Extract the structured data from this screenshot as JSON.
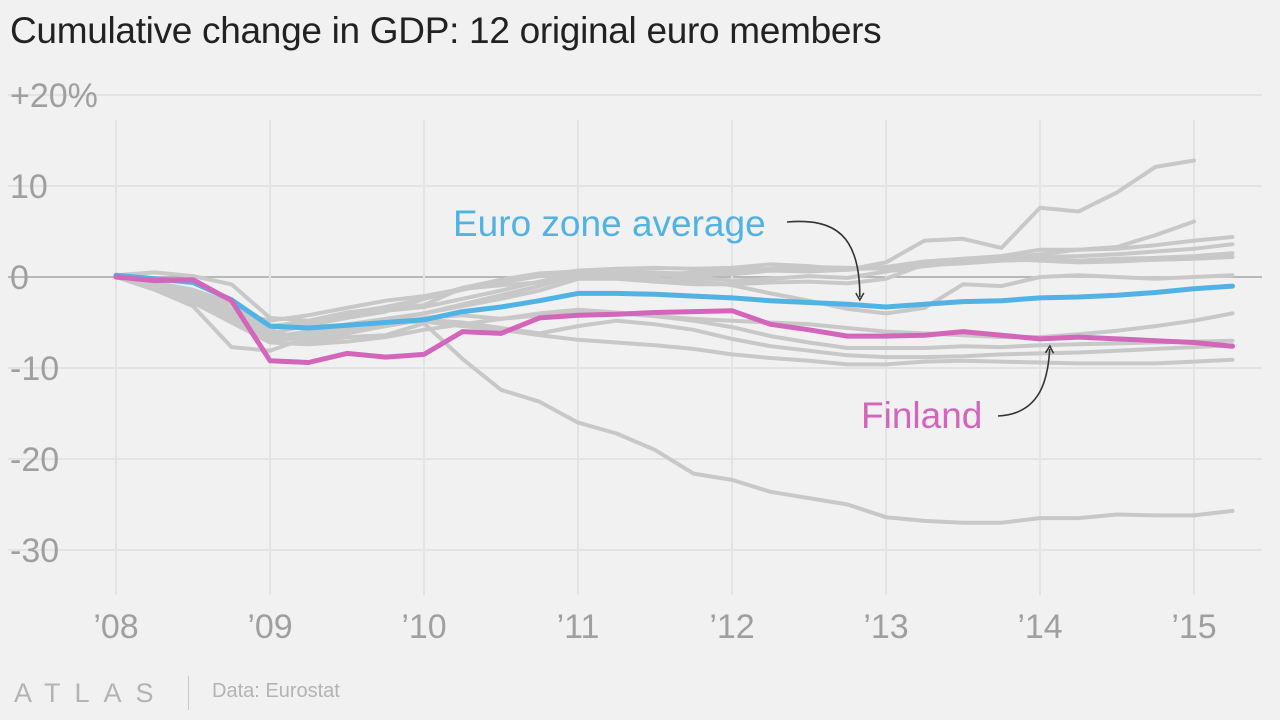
{
  "title": "Cumulative change in GDP: 12 original euro members",
  "footer": {
    "logo_text": "ATLAS",
    "source": "Data: Eurostat"
  },
  "colors": {
    "background": "#f1f1f1",
    "grid": "#e3e3e3",
    "zero_line": "#a6a6a6",
    "other_countries": "#c8c8c8",
    "euro_average": "#51b2e5",
    "finland": "#d365ba",
    "tick_text": "#9f9f9f"
  },
  "chart_data": {
    "type": "line",
    "title": "Cumulative change in GDP: 12 original euro members",
    "xlabel": "",
    "ylabel": "",
    "x_ticks": [
      "’08",
      "’09",
      "’10",
      "’11",
      "’12",
      "’13",
      "’14",
      "’15"
    ],
    "y_ticks": [
      {
        "value": 20,
        "label": "+20%"
      },
      {
        "value": 10,
        "label": "10"
      },
      {
        "value": 0,
        "label": "0"
      },
      {
        "value": -10,
        "label": "-10"
      },
      {
        "value": -20,
        "label": "-20"
      },
      {
        "value": -30,
        "label": "-30"
      }
    ],
    "xlim": [
      2008.0,
      2015.4
    ],
    "ylim": [
      -32,
      22
    ],
    "grid": true,
    "x": [
      2008.0,
      2008.25,
      2008.5,
      2008.75,
      2009.0,
      2009.25,
      2009.5,
      2009.75,
      2010.0,
      2010.25,
      2010.5,
      2010.75,
      2011.0,
      2011.25,
      2011.5,
      2011.75,
      2012.0,
      2012.25,
      2012.5,
      2012.75,
      2013.0,
      2013.25,
      2013.5,
      2013.75,
      2014.0,
      2014.25,
      2014.5,
      2014.75,
      2015.0,
      2015.25
    ],
    "highlighted": [
      {
        "name": "Euro zone average",
        "color": "#51b2e5",
        "values": [
          0.2,
          -0.2,
          -0.6,
          -2.5,
          -5.4,
          -5.6,
          -5.3,
          -5.0,
          -4.7,
          -3.8,
          -3.3,
          -2.6,
          -1.8,
          -1.8,
          -1.9,
          -2.1,
          -2.3,
          -2.6,
          -2.8,
          -3.0,
          -3.3,
          -3.0,
          -2.7,
          -2.6,
          -2.3,
          -2.2,
          -2.0,
          -1.7,
          -1.3,
          -1.0
        ]
      },
      {
        "name": "Finland",
        "color": "#d365ba",
        "values": [
          0.0,
          -0.4,
          -0.3,
          -2.6,
          -9.2,
          -9.4,
          -8.4,
          -8.8,
          -8.5,
          -6.0,
          -6.2,
          -4.5,
          -4.2,
          -4.1,
          -3.9,
          -3.8,
          -3.7,
          -5.2,
          -5.8,
          -6.5,
          -6.5,
          -6.4,
          -6.0,
          -6.4,
          -6.8,
          -6.6,
          -6.8,
          -7.0,
          -7.2,
          -7.6
        ]
      }
    ],
    "other_series": [
      {
        "values": [
          0.2,
          0.5,
          0.1,
          -0.8,
          -4.5,
          -4.8,
          -3.9,
          -3.4,
          -3.1,
          -1.2,
          -0.4,
          0.2,
          0.7,
          0.9,
          1.0,
          0.9,
          1.0,
          1.4,
          1.2,
          0.8,
          1.6,
          4.0,
          4.2,
          3.2,
          7.6,
          7.2,
          9.3,
          12.1,
          12.8,
          null
        ]
      },
      {
        "values": [
          0.1,
          -0.6,
          -1.4,
          -2.9,
          -5.6,
          -5.0,
          -4.0,
          -3.3,
          -2.4,
          -1.4,
          -0.6,
          0.1,
          0.4,
          0.4,
          0.3,
          0.0,
          -0.4,
          -0.2,
          0.1,
          -0.1,
          0.6,
          1.2,
          1.6,
          2.0,
          2.5,
          3.0,
          3.3,
          4.6,
          6.1,
          null
        ]
      },
      {
        "values": [
          0.0,
          -0.7,
          -1.7,
          -3.5,
          -6.2,
          -5.3,
          -4.5,
          -3.8,
          -2.4,
          -1.2,
          -0.3,
          0.4,
          0.6,
          0.6,
          0.5,
          0.3,
          0.3,
          0.7,
          0.6,
          0.8,
          1.1,
          1.7,
          2.0,
          2.3,
          3.0,
          3.0,
          3.1,
          3.5,
          4.0,
          4.4
        ]
      },
      {
        "values": [
          0.0,
          -0.6,
          -1.5,
          -3.0,
          -5.4,
          -4.9,
          -4.3,
          -3.7,
          -3.3,
          -2.4,
          -1.5,
          -0.5,
          0.4,
          0.5,
          0.4,
          0.4,
          0.7,
          0.9,
          0.8,
          1.0,
          1.0,
          1.4,
          1.6,
          1.9,
          2.2,
          2.3,
          2.5,
          2.8,
          3.1,
          3.6
        ]
      },
      {
        "values": [
          0.1,
          -0.8,
          -2.0,
          -4.0,
          -6.6,
          -6.0,
          -5.4,
          -4.9,
          -4.0,
          -3.0,
          -2.0,
          -1.0,
          0.2,
          0.1,
          0.2,
          0.5,
          0.6,
          0.9,
          1.1,
          1.0,
          0.9,
          1.3,
          1.5,
          1.8,
          1.9,
          1.8,
          2.0,
          2.1,
          2.3,
          2.6
        ]
      },
      {
        "values": [
          0.0,
          -0.9,
          -2.2,
          -4.6,
          -6.5,
          -6.2,
          -5.2,
          -4.6,
          -4.0,
          -3.2,
          -2.4,
          -1.5,
          -0.2,
          -0.2,
          -0.5,
          -0.8,
          -0.8,
          -0.6,
          -0.5,
          -0.7,
          -0.2,
          1.4,
          1.6,
          2.0,
          1.8,
          1.6,
          1.7,
          1.9,
          2.0,
          2.2
        ]
      },
      {
        "values": [
          0.0,
          -1.0,
          -2.4,
          -3.8,
          -4.8,
          -4.2,
          -3.4,
          -2.6,
          -2.1,
          -1.3,
          -0.9,
          -0.6,
          0.0,
          0.0,
          -0.2,
          -0.4,
          -0.9,
          -1.8,
          -2.6,
          -3.5,
          -4.0,
          -3.4,
          -0.8,
          -1.0,
          0.0,
          0.2,
          0.0,
          -0.2,
          0.0,
          0.2
        ]
      },
      {
        "values": [
          0.0,
          -1.2,
          -2.6,
          -4.8,
          -7.0,
          -6.6,
          -6.0,
          -5.4,
          -4.5,
          -4.2,
          -4.6,
          -4.2,
          -3.8,
          -4.0,
          -4.3,
          -4.6,
          -4.8,
          -5.0,
          -5.2,
          -5.6,
          -6.0,
          -6.2,
          -6.4,
          -6.6,
          -6.6,
          -6.3,
          -5.9,
          -5.4,
          -4.8,
          -4.0
        ]
      },
      {
        "values": [
          0.0,
          -1.3,
          -2.8,
          -5.0,
          -7.2,
          -7.4,
          -7.1,
          -6.6,
          -5.8,
          -5.2,
          -4.6,
          -4.0,
          -3.6,
          -3.9,
          -4.3,
          -4.8,
          -5.5,
          -6.5,
          -7.2,
          -7.8,
          -7.8,
          -7.8,
          -7.6,
          -7.7,
          -7.5,
          -7.4,
          -7.3,
          -7.2,
          -7.1,
          -7.0
        ]
      },
      {
        "values": [
          0.0,
          -1.0,
          -2.2,
          -4.2,
          -6.4,
          -6.8,
          -6.2,
          -5.4,
          -4.7,
          -5.0,
          -5.6,
          -6.2,
          -5.4,
          -4.8,
          -5.2,
          -5.8,
          -6.8,
          -7.6,
          -8.1,
          -8.6,
          -8.8,
          -8.8,
          -8.7,
          -8.5,
          -8.4,
          -8.3,
          -8.1,
          -7.9,
          -7.7,
          -7.5
        ]
      },
      {
        "values": [
          0.0,
          -1.4,
          -3.2,
          -7.7,
          -8.1,
          -6.6,
          -5.6,
          -5.0,
          -4.9,
          -5.4,
          -5.8,
          -6.4,
          -6.9,
          -7.2,
          -7.5,
          -7.9,
          -8.5,
          -8.9,
          -9.2,
          -9.6,
          -9.6,
          -9.3,
          -9.2,
          -9.3,
          -9.4,
          -9.5,
          -9.5,
          -9.5,
          -9.3,
          -9.1
        ]
      },
      {
        "values": [
          0.0,
          -0.6,
          -1.8,
          -3.8,
          -5.8,
          -7.1,
          -6.6,
          -6.4,
          -5.1,
          -9.0,
          -12.4,
          -13.7,
          -16.0,
          -17.2,
          -19.0,
          -21.6,
          -22.3,
          -23.6,
          -24.3,
          -25.0,
          -26.4,
          -26.8,
          -27.0,
          -27.0,
          -26.5,
          -26.5,
          -26.1,
          -26.2,
          -26.2,
          -25.7
        ]
      }
    ],
    "annotations": [
      {
        "text": "Euro zone average",
        "color": "#51b2e5",
        "points_to": "Euro zone average",
        "at_x": 2012.83
      },
      {
        "text": "Finland",
        "color": "#d365ba",
        "points_to": "Finland",
        "at_x": 2014.05
      }
    ]
  }
}
